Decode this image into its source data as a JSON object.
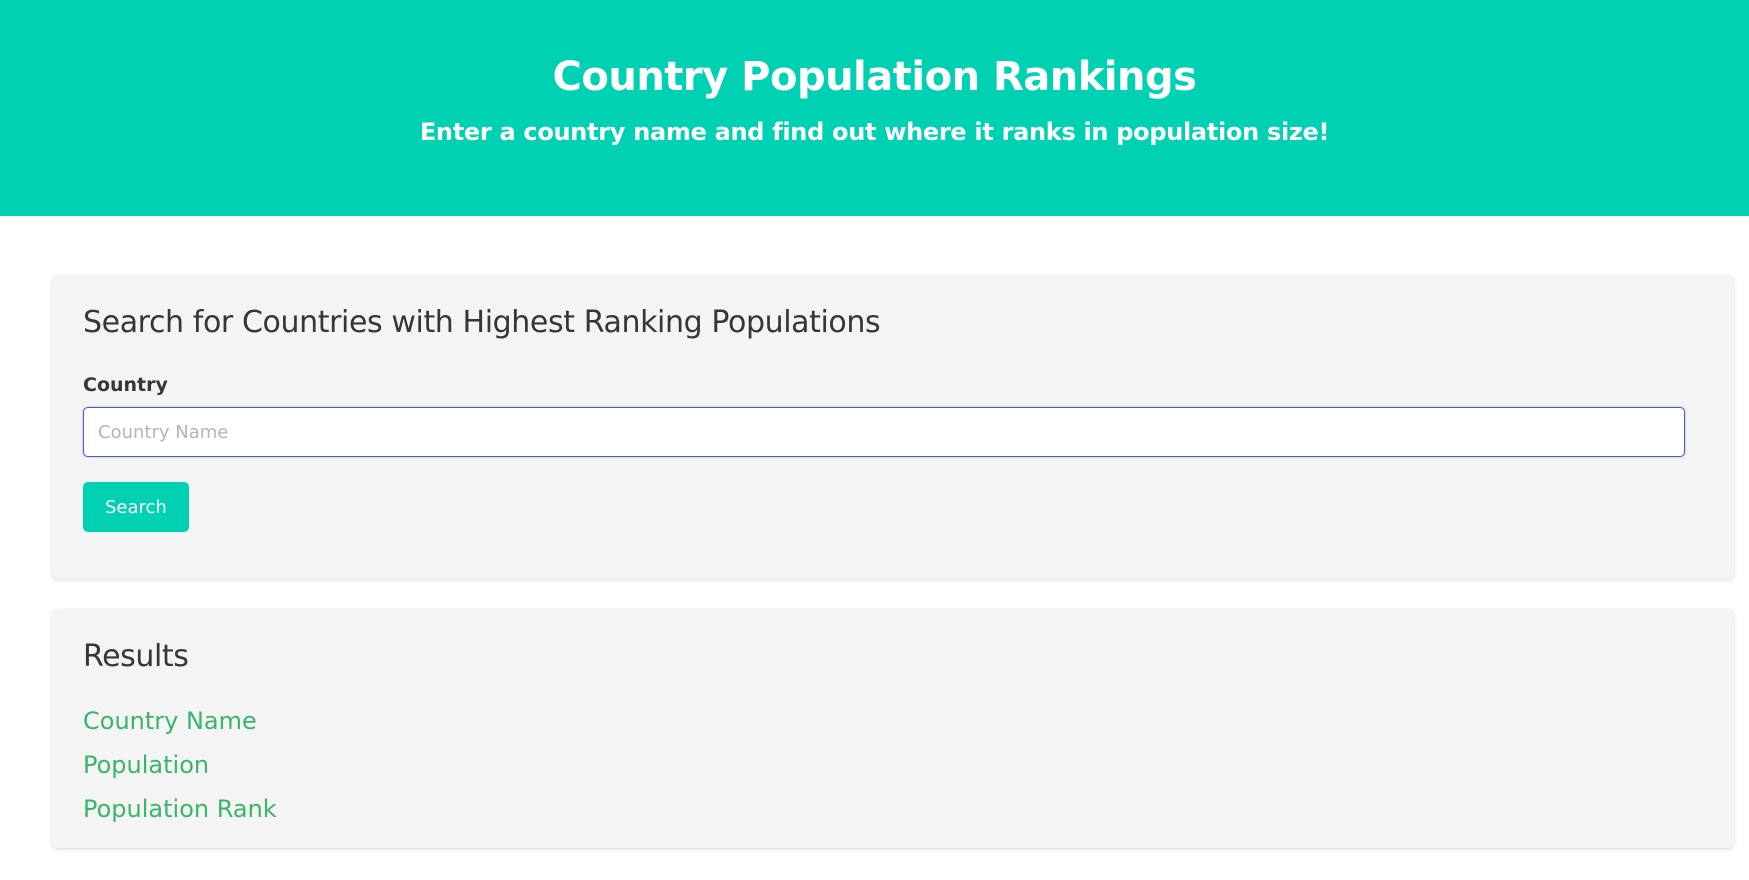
{
  "hero": {
    "title": "Country Population Rankings",
    "subtitle": "Enter a country name and find out where it ranks in population size!"
  },
  "search": {
    "title": "Search for Countries with Highest Ranking Populations",
    "field_label": "Country",
    "input_value": "",
    "input_placeholder": "Country Name",
    "button_label": "Search"
  },
  "results": {
    "title": "Results",
    "items": [
      "Country Name",
      "Population",
      "Population Rank"
    ]
  },
  "colors": {
    "primary": "#00d1b2",
    "link": "#3ab56c",
    "focus_border": "#485fc7",
    "box_background": "#f4f4f4"
  }
}
